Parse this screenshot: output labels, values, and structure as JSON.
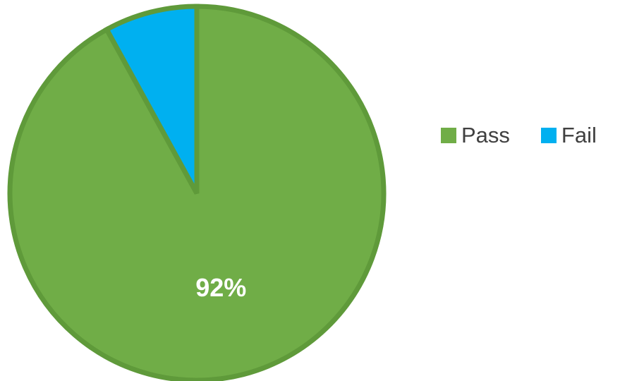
{
  "chart_data": {
    "type": "pie",
    "title": "",
    "slices": [
      {
        "name": "Pass",
        "value": 92,
        "label": "92%",
        "color": "#70AD47"
      },
      {
        "name": "Fail",
        "value": 8,
        "label": "",
        "color": "#00B0F0"
      }
    ],
    "start_angle_deg": 0,
    "direction": "clockwise",
    "slice_border_color": "#5F9A3A",
    "data_label_color": "#FFFFFF",
    "legend_position": "right"
  }
}
